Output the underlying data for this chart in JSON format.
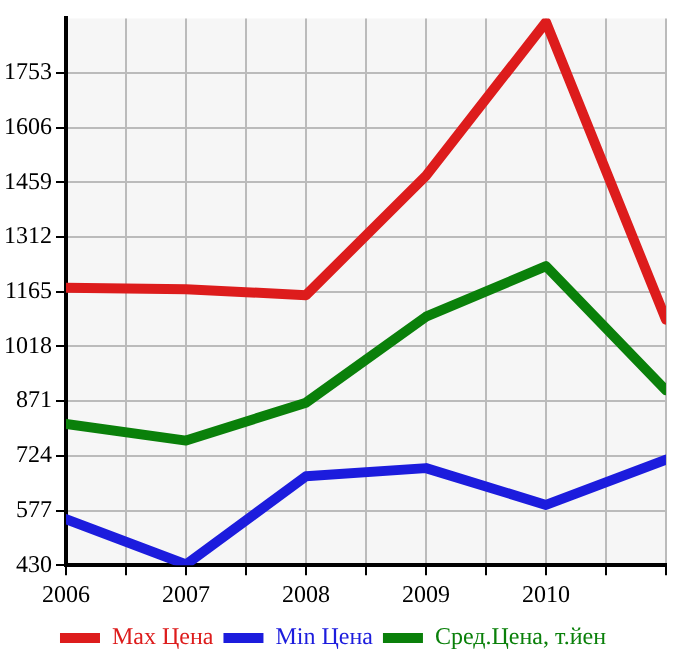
{
  "chart_data": {
    "type": "line",
    "x": [
      2006,
      2007,
      2008,
      2009,
      2010,
      2011
    ],
    "series": [
      {
        "name": "Max Цена",
        "color": "#dd1c1c",
        "values": [
          1176,
          1172,
          1156,
          1477,
          1890,
          1090
        ]
      },
      {
        "name": "Min Цена",
        "color": "#1c1cdd",
        "values": [
          554,
          432,
          669,
          691,
          592,
          714
        ]
      },
      {
        "name": "Сред.Цена, т.йен",
        "color": "#0a800a",
        "values": [
          810,
          765,
          867,
          1098,
          1234,
          900
        ]
      }
    ],
    "xlim": [
      2006,
      2011
    ],
    "xticks": [
      2006,
      {
        "value": 2006.5,
        "label": null
      },
      2007,
      {
        "value": 2007.5,
        "label": null
      },
      2008,
      {
        "value": 2008.5,
        "label": null
      },
      2009,
      {
        "value": 2009.5,
        "label": null
      },
      2010,
      {
        "value": 2010.5,
        "label": null
      },
      {
        "value": 2011,
        "label": null
      }
    ],
    "ylim": [
      430,
      1900
    ],
    "yticks": [
      430,
      577,
      724,
      871,
      1018,
      1165,
      1312,
      1459,
      1606,
      1753
    ],
    "grid": true,
    "legend": "bottom",
    "marker": "none",
    "line_style": "solid"
  }
}
